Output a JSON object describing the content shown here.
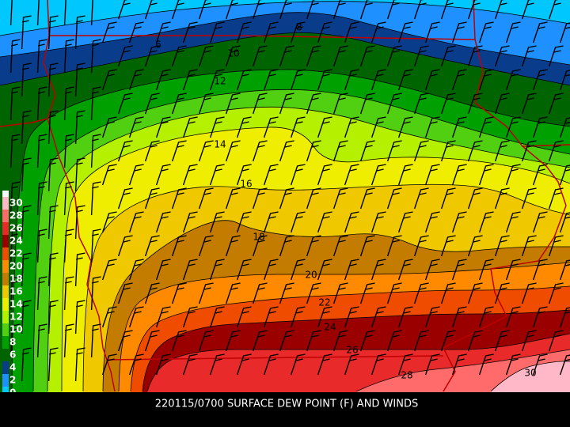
{
  "map": {
    "caption": "220115/0700 SURFACE DEW POINT (F) AND WINDS",
    "contour_labels": [
      8,
      6,
      10,
      12,
      14,
      16,
      18,
      20,
      22,
      24,
      26,
      28,
      30
    ],
    "legend": [
      {
        "label": 30,
        "color": "#ffb8c8"
      },
      {
        "label": 28,
        "color": "#ff6a6a"
      },
      {
        "label": 26,
        "color": "#e82a2a"
      },
      {
        "label": 24,
        "color": "#9a0000"
      },
      {
        "label": 22,
        "color": "#f04c00"
      },
      {
        "label": 20,
        "color": "#ff8a00"
      },
      {
        "label": 18,
        "color": "#c47c00"
      },
      {
        "label": 16,
        "color": "#f0c800"
      },
      {
        "label": 14,
        "color": "#f0ee00"
      },
      {
        "label": 12,
        "color": "#b4f000"
      },
      {
        "label": 10,
        "color": "#50d010"
      },
      {
        "label": 8,
        "color": "#00a000"
      },
      {
        "label": 6,
        "color": "#006400"
      },
      {
        "label": 4,
        "color": "#0a3c8c"
      },
      {
        "label": 2,
        "color": "#1e90ff"
      },
      {
        "label": 0,
        "color": "#00c8ff"
      }
    ]
  }
}
